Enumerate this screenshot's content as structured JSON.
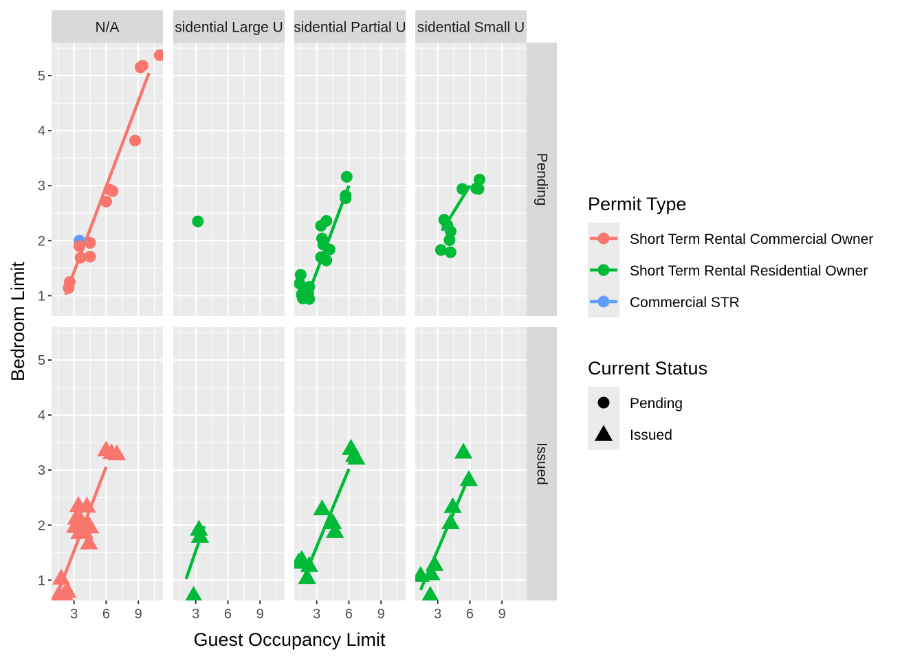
{
  "chart_data": {
    "type": "scatter",
    "xlabel": "Guest Occupancy Limit",
    "ylabel": "Bedroom Limit",
    "xlim": [
      0.9,
      11.3
    ],
    "ylim": [
      0.63,
      5.6
    ],
    "x_ticks": [
      3,
      6,
      9
    ],
    "y_ticks": [
      1,
      2,
      3,
      4,
      5
    ],
    "grid": true,
    "legend_position": "right",
    "col_facets": [
      "N/A",
      "Residential Large Unit",
      "Residential Partial Unit",
      "Residential Small Unit"
    ],
    "col_facet_labels_visible": [
      "N/A",
      "sidential Large U",
      "sidential Partial U",
      "sidential Small U"
    ],
    "row_facets": [
      "Pending",
      "Issued"
    ],
    "colors": {
      "Short Term Rental Commercial Owner": "#F8766D",
      "Short Term Rental Residential Owner": "#00BA38",
      "Commercial STR": "#619CFF"
    },
    "legends": {
      "permit_type": {
        "title": "Permit Type",
        "items": [
          "Short Term Rental Commercial Owner",
          "Short Term Rental Residential Owner",
          "Commercial STR"
        ]
      },
      "status": {
        "title": "Current Status",
        "items": [
          {
            "label": "Pending",
            "shape": "circle"
          },
          {
            "label": "Issued",
            "shape": "triangle"
          }
        ]
      }
    },
    "panels": [
      {
        "col": 0,
        "row": 0,
        "points": [
          {
            "x": 11.0,
            "y": 5.37,
            "type": "Short Term Rental Commercial Owner"
          },
          {
            "x": 9.2,
            "y": 5.15,
            "type": "Short Term Rental Commercial Owner"
          },
          {
            "x": 9.4,
            "y": 5.18,
            "type": "Short Term Rental Commercial Owner"
          },
          {
            "x": 8.7,
            "y": 3.82,
            "type": "Short Term Rental Commercial Owner"
          },
          {
            "x": 6.3,
            "y": 2.93,
            "type": "Short Term Rental Commercial Owner"
          },
          {
            "x": 6.6,
            "y": 2.9,
            "type": "Short Term Rental Commercial Owner"
          },
          {
            "x": 6.0,
            "y": 2.71,
            "type": "Short Term Rental Commercial Owner"
          },
          {
            "x": 3.5,
            "y": 2.0,
            "type": "Commercial STR"
          },
          {
            "x": 4.5,
            "y": 1.96,
            "type": "Short Term Rental Commercial Owner"
          },
          {
            "x": 3.5,
            "y": 1.9,
            "type": "Short Term Rental Commercial Owner"
          },
          {
            "x": 3.6,
            "y": 1.69,
            "type": "Short Term Rental Commercial Owner"
          },
          {
            "x": 4.5,
            "y": 1.71,
            "type": "Short Term Rental Commercial Owner"
          },
          {
            "x": 2.6,
            "y": 1.25,
            "type": "Short Term Rental Commercial Owner"
          },
          {
            "x": 2.5,
            "y": 1.14,
            "type": "Short Term Rental Commercial Owner"
          }
        ],
        "lines": [
          {
            "type": "Short Term Rental Commercial Owner",
            "x": [
              2.2,
              10.0
            ],
            "y": [
              1.02,
              5.05
            ]
          }
        ]
      },
      {
        "col": 1,
        "row": 0,
        "points": [
          {
            "x": 3.2,
            "y": 2.35,
            "type": "Short Term Rental Residential Owner"
          }
        ],
        "lines": []
      },
      {
        "col": 2,
        "row": 0,
        "points": [
          {
            "x": 5.8,
            "y": 3.16,
            "type": "Short Term Rental Residential Owner"
          },
          {
            "x": 5.7,
            "y": 2.82,
            "type": "Short Term Rental Residential Owner"
          },
          {
            "x": 5.7,
            "y": 2.77,
            "type": "Short Term Rental Residential Owner"
          },
          {
            "x": 3.9,
            "y": 2.36,
            "type": "Short Term Rental Residential Owner"
          },
          {
            "x": 3.4,
            "y": 2.27,
            "type": "Short Term Rental Residential Owner"
          },
          {
            "x": 3.5,
            "y": 2.04,
            "type": "Short Term Rental Residential Owner"
          },
          {
            "x": 3.6,
            "y": 1.93,
            "type": "Short Term Rental Residential Owner"
          },
          {
            "x": 4.2,
            "y": 1.84,
            "type": "Short Term Rental Residential Owner"
          },
          {
            "x": 3.4,
            "y": 1.7,
            "type": "Short Term Rental Residential Owner"
          },
          {
            "x": 3.9,
            "y": 1.64,
            "type": "Short Term Rental Residential Owner"
          },
          {
            "x": 1.5,
            "y": 1.38,
            "type": "Short Term Rental Residential Owner"
          },
          {
            "x": 1.4,
            "y": 1.22,
            "type": "Short Term Rental Residential Owner"
          },
          {
            "x": 1.8,
            "y": 1.14,
            "type": "Short Term Rental Residential Owner"
          },
          {
            "x": 2.3,
            "y": 1.16,
            "type": "Short Term Rental Residential Owner"
          },
          {
            "x": 2.2,
            "y": 1.05,
            "type": "Short Term Rental Residential Owner"
          },
          {
            "x": 1.6,
            "y": 1.02,
            "type": "Short Term Rental Residential Owner"
          },
          {
            "x": 1.7,
            "y": 0.95,
            "type": "Short Term Rental Residential Owner"
          },
          {
            "x": 2.3,
            "y": 0.94,
            "type": "Short Term Rental Residential Owner"
          }
        ],
        "lines": [
          {
            "type": "Short Term Rental Residential Owner",
            "x": [
              2.2,
              6.0
            ],
            "y": [
              1.02,
              3.0
            ]
          }
        ]
      },
      {
        "col": 3,
        "row": 0,
        "points": [
          {
            "x": 6.9,
            "y": 3.11,
            "type": "Short Term Rental Residential Owner"
          },
          {
            "x": 5.3,
            "y": 2.94,
            "type": "Short Term Rental Residential Owner"
          },
          {
            "x": 6.6,
            "y": 2.95,
            "type": "Short Term Rental Residential Owner"
          },
          {
            "x": 6.8,
            "y": 2.94,
            "type": "Short Term Rental Residential Owner"
          },
          {
            "x": 3.6,
            "y": 2.38,
            "type": "Short Term Rental Residential Owner"
          },
          {
            "x": 3.9,
            "y": 2.28,
            "type": "Short Term Rental Residential Owner"
          },
          {
            "x": 4.2,
            "y": 2.17,
            "type": "Short Term Rental Residential Owner"
          },
          {
            "x": 4.1,
            "y": 2.01,
            "type": "Short Term Rental Residential Owner"
          },
          {
            "x": 3.3,
            "y": 1.83,
            "type": "Short Term Rental Residential Owner"
          },
          {
            "x": 4.2,
            "y": 1.79,
            "type": "Short Term Rental Residential Owner"
          }
        ],
        "lines": [
          {
            "type": "Short Term Rental Residential Owner",
            "x": [
              3.4,
              6.0
            ],
            "y": [
              2.18,
              3.0
            ]
          }
        ]
      },
      {
        "col": 0,
        "row": 1,
        "points": [
          {
            "x": 6.0,
            "y": 3.37,
            "type": "Short Term Rental Commercial Owner"
          },
          {
            "x": 6.5,
            "y": 3.32,
            "type": "Short Term Rental Commercial Owner"
          },
          {
            "x": 7.0,
            "y": 3.3,
            "type": "Short Term Rental Commercial Owner"
          },
          {
            "x": 3.4,
            "y": 2.36,
            "type": "Short Term Rental Commercial Owner"
          },
          {
            "x": 4.2,
            "y": 2.35,
            "type": "Short Term Rental Commercial Owner"
          },
          {
            "x": 3.2,
            "y": 2.13,
            "type": "Short Term Rental Commercial Owner"
          },
          {
            "x": 3.6,
            "y": 2.1,
            "type": "Short Term Rental Commercial Owner"
          },
          {
            "x": 3.1,
            "y": 1.98,
            "type": "Short Term Rental Commercial Owner"
          },
          {
            "x": 4.3,
            "y": 2.03,
            "type": "Short Term Rental Commercial Owner"
          },
          {
            "x": 4.5,
            "y": 1.97,
            "type": "Short Term Rental Commercial Owner"
          },
          {
            "x": 3.5,
            "y": 1.87,
            "type": "Short Term Rental Commercial Owner"
          },
          {
            "x": 4.0,
            "y": 1.87,
            "type": "Short Term Rental Commercial Owner"
          },
          {
            "x": 4.4,
            "y": 1.68,
            "type": "Short Term Rental Commercial Owner"
          },
          {
            "x": 1.8,
            "y": 1.04,
            "type": "Short Term Rental Commercial Owner"
          },
          {
            "x": 2.4,
            "y": 0.8,
            "type": "Short Term Rental Commercial Owner"
          },
          {
            "x": 1.6,
            "y": 0.75,
            "type": "Short Term Rental Commercial Owner"
          },
          {
            "x": 2.1,
            "y": 0.75,
            "type": "Short Term Rental Commercial Owner"
          }
        ],
        "lines": [
          {
            "type": "Short Term Rental Commercial Owner",
            "x": [
              1.3,
              6.0
            ],
            "y": [
              0.67,
              3.06
            ]
          }
        ]
      },
      {
        "col": 1,
        "row": 1,
        "points": [
          {
            "x": 3.3,
            "y": 1.93,
            "type": "Short Term Rental Residential Owner"
          },
          {
            "x": 3.4,
            "y": 1.8,
            "type": "Short Term Rental Residential Owner"
          },
          {
            "x": 2.8,
            "y": 0.73,
            "type": "Short Term Rental Residential Owner"
          }
        ],
        "lines": [
          {
            "type": "Short Term Rental Residential Owner",
            "x": [
              2.1,
              3.8
            ],
            "y": [
              1.02,
              1.98
            ]
          }
        ]
      },
      {
        "col": 2,
        "row": 1,
        "points": [
          {
            "x": 6.2,
            "y": 3.4,
            "type": "Short Term Rental Residential Owner"
          },
          {
            "x": 6.5,
            "y": 3.27,
            "type": "Short Term Rental Residential Owner"
          },
          {
            "x": 6.7,
            "y": 3.22,
            "type": "Short Term Rental Residential Owner"
          },
          {
            "x": 3.5,
            "y": 2.3,
            "type": "Short Term Rental Residential Owner"
          },
          {
            "x": 4.5,
            "y": 2.05,
            "type": "Short Term Rental Residential Owner"
          },
          {
            "x": 4.7,
            "y": 1.89,
            "type": "Short Term Rental Residential Owner"
          },
          {
            "x": 1.6,
            "y": 1.38,
            "type": "Short Term Rental Residential Owner"
          },
          {
            "x": 1.3,
            "y": 1.33,
            "type": "Short Term Rental Residential Owner"
          },
          {
            "x": 2.3,
            "y": 1.27,
            "type": "Short Term Rental Residential Owner"
          },
          {
            "x": 2.1,
            "y": 1.05,
            "type": "Short Term Rental Residential Owner"
          }
        ],
        "lines": [
          {
            "type": "Short Term Rental Residential Owner",
            "x": [
              1.6,
              6.0
            ],
            "y": [
              0.95,
              3.02
            ]
          }
        ]
      },
      {
        "col": 3,
        "row": 1,
        "points": [
          {
            "x": 5.4,
            "y": 3.33,
            "type": "Short Term Rental Residential Owner"
          },
          {
            "x": 5.9,
            "y": 2.83,
            "type": "Short Term Rental Residential Owner"
          },
          {
            "x": 4.4,
            "y": 2.34,
            "type": "Short Term Rental Residential Owner"
          },
          {
            "x": 4.2,
            "y": 2.05,
            "type": "Short Term Rental Residential Owner"
          },
          {
            "x": 2.7,
            "y": 1.29,
            "type": "Short Term Rental Residential Owner"
          },
          {
            "x": 2.4,
            "y": 1.12,
            "type": "Short Term Rental Residential Owner"
          },
          {
            "x": 1.4,
            "y": 1.09,
            "type": "Short Term Rental Residential Owner"
          },
          {
            "x": 2.3,
            "y": 0.73,
            "type": "Short Term Rental Residential Owner"
          }
        ],
        "lines": [
          {
            "type": "Short Term Rental Residential Owner",
            "x": [
              1.4,
              6.0
            ],
            "y": [
              0.82,
              2.92
            ]
          }
        ]
      }
    ]
  }
}
